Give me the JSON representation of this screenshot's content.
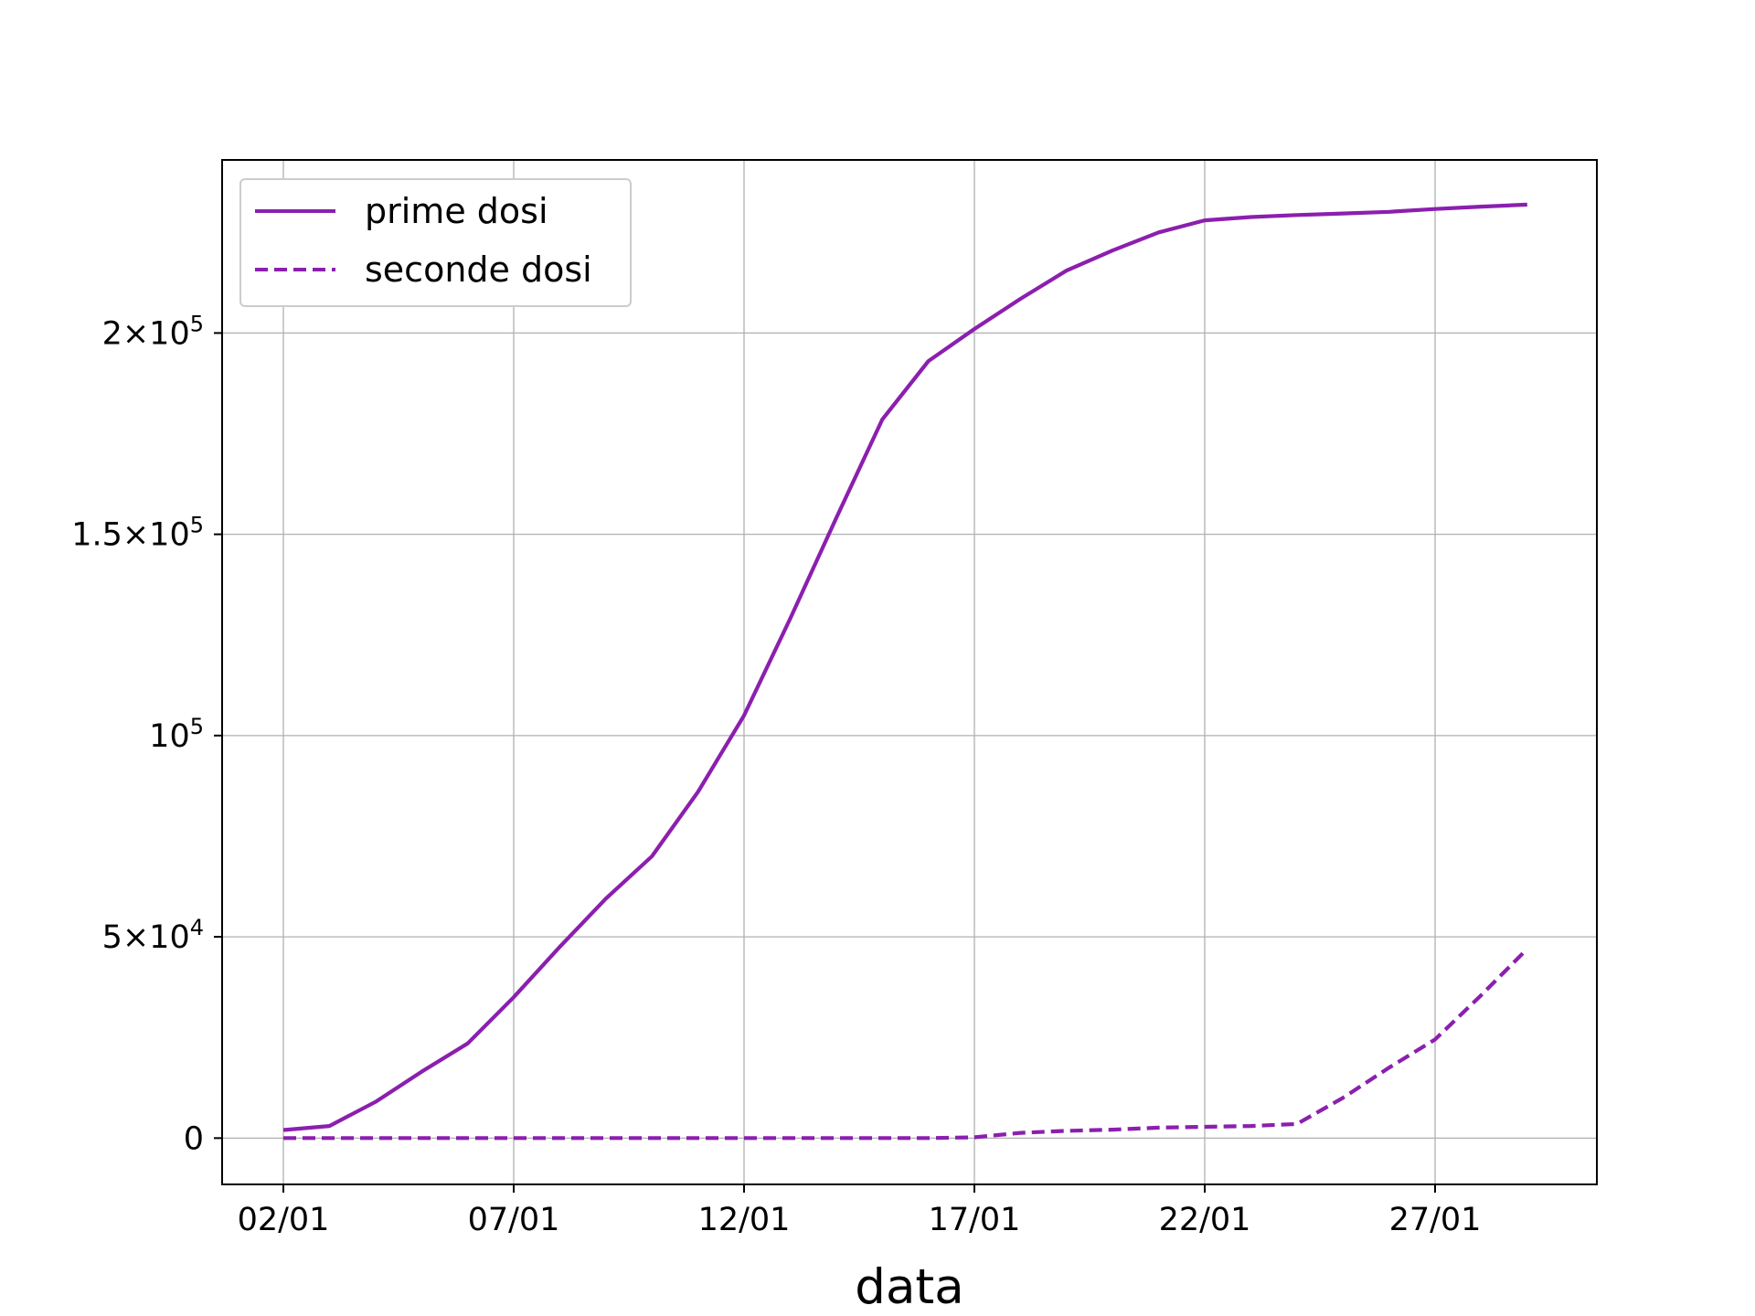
{
  "colors": {
    "series": "#8b1fae",
    "grid": "#b0b0b0",
    "axes": "#000000",
    "legend_border": "#cccccc"
  },
  "chart_data": {
    "type": "line",
    "xlabel": "data",
    "ylabel": "",
    "title": "",
    "grid": true,
    "legend_position": "top-left",
    "x_ticks": [
      "02/01",
      "07/01",
      "12/01",
      "17/01",
      "22/01",
      "27/01"
    ],
    "y_ticks": [
      {
        "value": 0,
        "mantissa": "0",
        "exponent": ""
      },
      {
        "value": 50000,
        "mantissa": "5×10",
        "exponent": "4"
      },
      {
        "value": 100000,
        "mantissa": "10",
        "exponent": "5"
      },
      {
        "value": 150000,
        "mantissa": "1.5×10",
        "exponent": "5"
      },
      {
        "value": 200000,
        "mantissa": "2×10",
        "exponent": "5"
      }
    ],
    "ylim": [
      -11500,
      243000
    ],
    "x": [
      "02/01",
      "03/01",
      "04/01",
      "05/01",
      "06/01",
      "07/01",
      "08/01",
      "09/01",
      "10/01",
      "11/01",
      "12/01",
      "13/01",
      "14/01",
      "15/01",
      "16/01",
      "17/01",
      "18/01",
      "19/01",
      "20/01",
      "21/01",
      "22/01",
      "23/01",
      "24/01",
      "25/01",
      "26/01",
      "27/01",
      "28/01",
      "29/01"
    ],
    "series": [
      {
        "name": "prime dosi",
        "style": "solid",
        "values": [
          2000,
          3000,
          9000,
          16500,
          23500,
          35000,
          47500,
          59500,
          70000,
          86000,
          105000,
          129000,
          154000,
          178500,
          193000,
          201000,
          208500,
          215500,
          220500,
          225000,
          228000,
          228800,
          229300,
          229700,
          230100,
          230800,
          231400,
          231900
        ]
      },
      {
        "name": "seconde dosi",
        "style": "dashed",
        "values": [
          0,
          0,
          0,
          0,
          0,
          0,
          0,
          0,
          0,
          0,
          0,
          0,
          0,
          0,
          0,
          200,
          1300,
          1800,
          2100,
          2600,
          2800,
          3000,
          3500,
          10000,
          17500,
          24500,
          35500,
          47000
        ]
      }
    ]
  }
}
